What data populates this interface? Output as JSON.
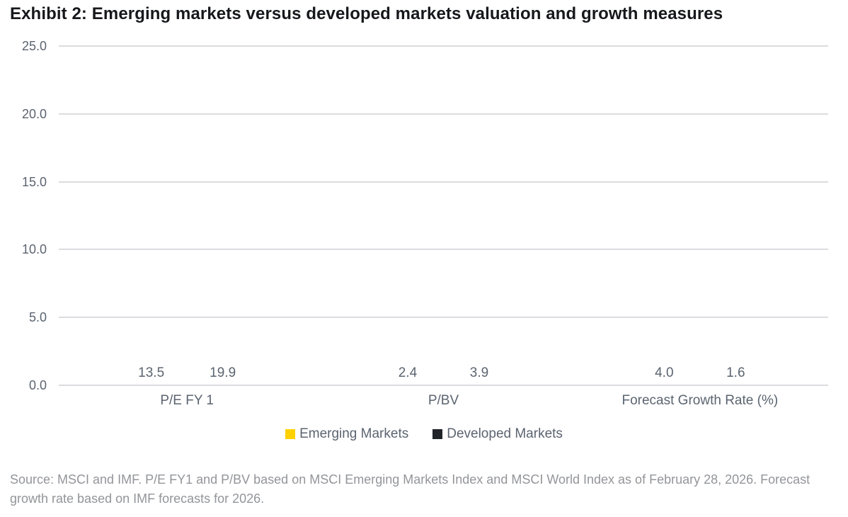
{
  "title": "Exhibit 2: Emerging markets versus developed markets valuation and growth measures",
  "source_note": "Source: MSCI and IMF. P/E FY1 and P/BV based on MSCI Emerging Markets Index and MSCI World Index as of February 28, 2026. Forecast growth rate based on IMF forecasts for 2026.",
  "colors": {
    "emerging": "#FFD100",
    "developed": "#212429",
    "gridline": "#DCDCE0",
    "axis_text": "#5B6470",
    "title_text": "#16181C",
    "source_text": "#939599"
  },
  "chart_data": {
    "type": "bar",
    "categories": [
      "P/E FY 1",
      "P/BV",
      "Forecast Growth Rate (%)"
    ],
    "series": [
      {
        "name": "Emerging Markets",
        "color_key": "emerging",
        "values": [
          13.5,
          2.4,
          4.0
        ]
      },
      {
        "name": "Developed Markets",
        "color_key": "developed",
        "values": [
          19.9,
          3.9,
          1.6
        ]
      }
    ],
    "title": "Exhibit 2: Emerging markets versus developed markets valuation and growth measures",
    "xlabel": "",
    "ylabel": "",
    "ylim": [
      0,
      25
    ],
    "ytick_step": 5,
    "ytick_labels": [
      "0.0",
      "5.0",
      "10.0",
      "15.0",
      "20.0",
      "25.0"
    ],
    "grid": true,
    "legend_position": "bottom",
    "value_label_decimals": 1
  }
}
